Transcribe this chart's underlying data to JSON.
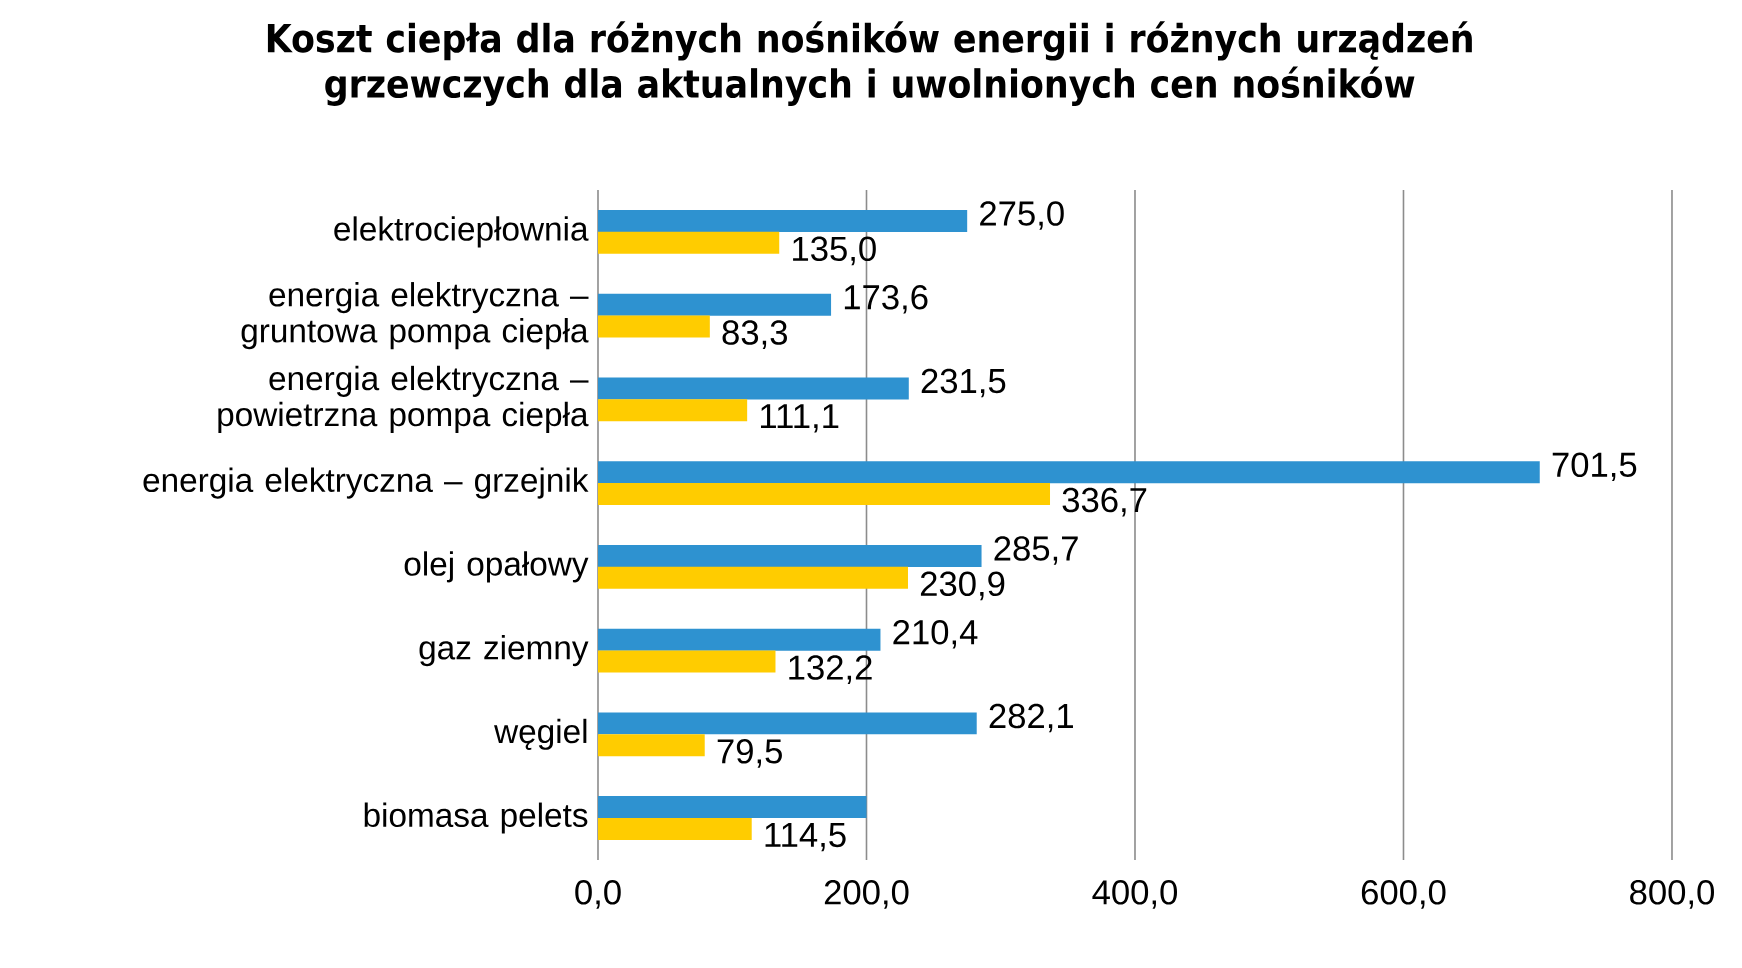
{
  "chart_data": {
    "type": "bar",
    "orientation": "horizontal",
    "title": "Koszt ciepła dla różnych nośników energii i różnych urządzeń grzewczych dla aktualnych i uwolnionych cen nośników",
    "categories": [
      "elektrociepłownia",
      "energia elektryczna – gruntowa pompa ciepła",
      "energia elektryczna – powietrzna pompa ciepła",
      "energia elektryczna – grzejnik",
      "olej opałowy",
      "gaz ziemny",
      "węgiel",
      "biomasa pelets"
    ],
    "series": [
      {
        "color": "#2e92d0",
        "values": [
          275.0,
          173.6,
          231.5,
          701.5,
          285.7,
          210.4,
          282.1,
          200
        ],
        "value_labels": [
          "275,0",
          "173,6",
          "231,5",
          "701,5",
          "285,7",
          "210,4",
          "282,1",
          null
        ]
      },
      {
        "color": "#ffcc00",
        "values": [
          135.0,
          83.3,
          111.1,
          336.7,
          230.9,
          132.2,
          79.5,
          114.5
        ],
        "value_labels": [
          "135,0",
          "83,3",
          "111,1",
          "336,7",
          "230,9",
          "132,2",
          "79,5",
          "114,5"
        ]
      }
    ],
    "xlim": [
      0,
      800
    ],
    "xticks": [
      {
        "value": 0,
        "label": "0,0"
      },
      {
        "value": 200,
        "label": "200,0"
      },
      {
        "value": 400,
        "label": "400,0"
      },
      {
        "value": 600,
        "label": "600,0"
      },
      {
        "value": 800,
        "label": "800,0"
      }
    ],
    "grid": "x"
  }
}
